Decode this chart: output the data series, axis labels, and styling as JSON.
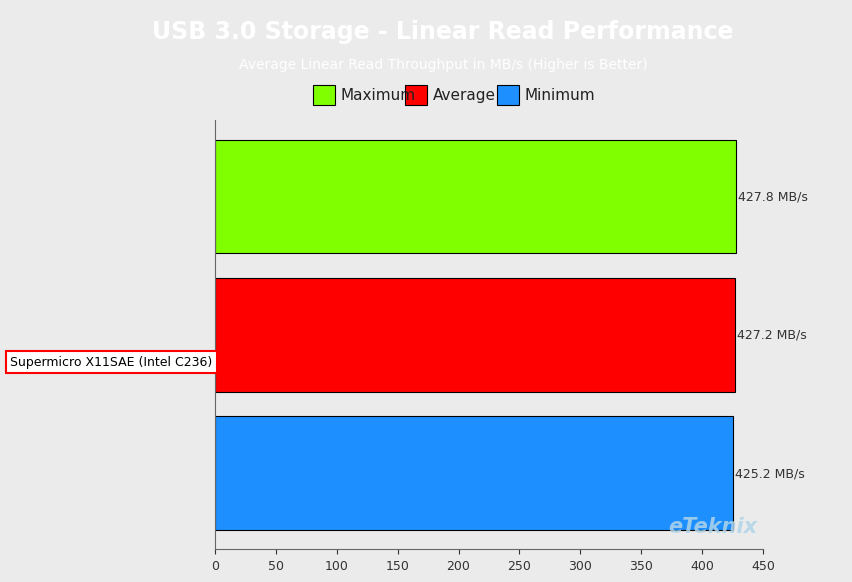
{
  "title": "USB 3.0 Storage - Linear Read Performance",
  "subtitle": "Average Linear Read Throughput in MB/s (Higher is Better)",
  "title_bg_color": "#29abe2",
  "title_text_color": "#ffffff",
  "background_color": "#ebebeb",
  "plot_bg_color": "#ebebeb",
  "ylabel_label": "Supermicro X11SAE (Intel C236)",
  "values": [
    427.8,
    427.2,
    425.2
  ],
  "bar_colors": [
    "#80ff00",
    "#ff0000",
    "#1e8fff"
  ],
  "bar_edgecolor": "#000000",
  "xlim": [
    0,
    450
  ],
  "xticks": [
    0,
    50,
    100,
    150,
    200,
    250,
    300,
    350,
    400,
    450
  ],
  "watermark": "eTeknix",
  "watermark_color": "#b0d4e8",
  "legend_labels": [
    "Maximum",
    "Average",
    "Minimum"
  ],
  "legend_colors": [
    "#80ff00",
    "#ff0000",
    "#1e8fff"
  ],
  "value_labels": [
    "427.8 MB/s",
    "427.2 MB/s",
    "425.2 MB/s"
  ],
  "title_fontsize": 17,
  "subtitle_fontsize": 10,
  "legend_fontsize": 11,
  "bar_value_fontsize": 9,
  "tick_fontsize": 9,
  "ylabel_fontsize": 9
}
